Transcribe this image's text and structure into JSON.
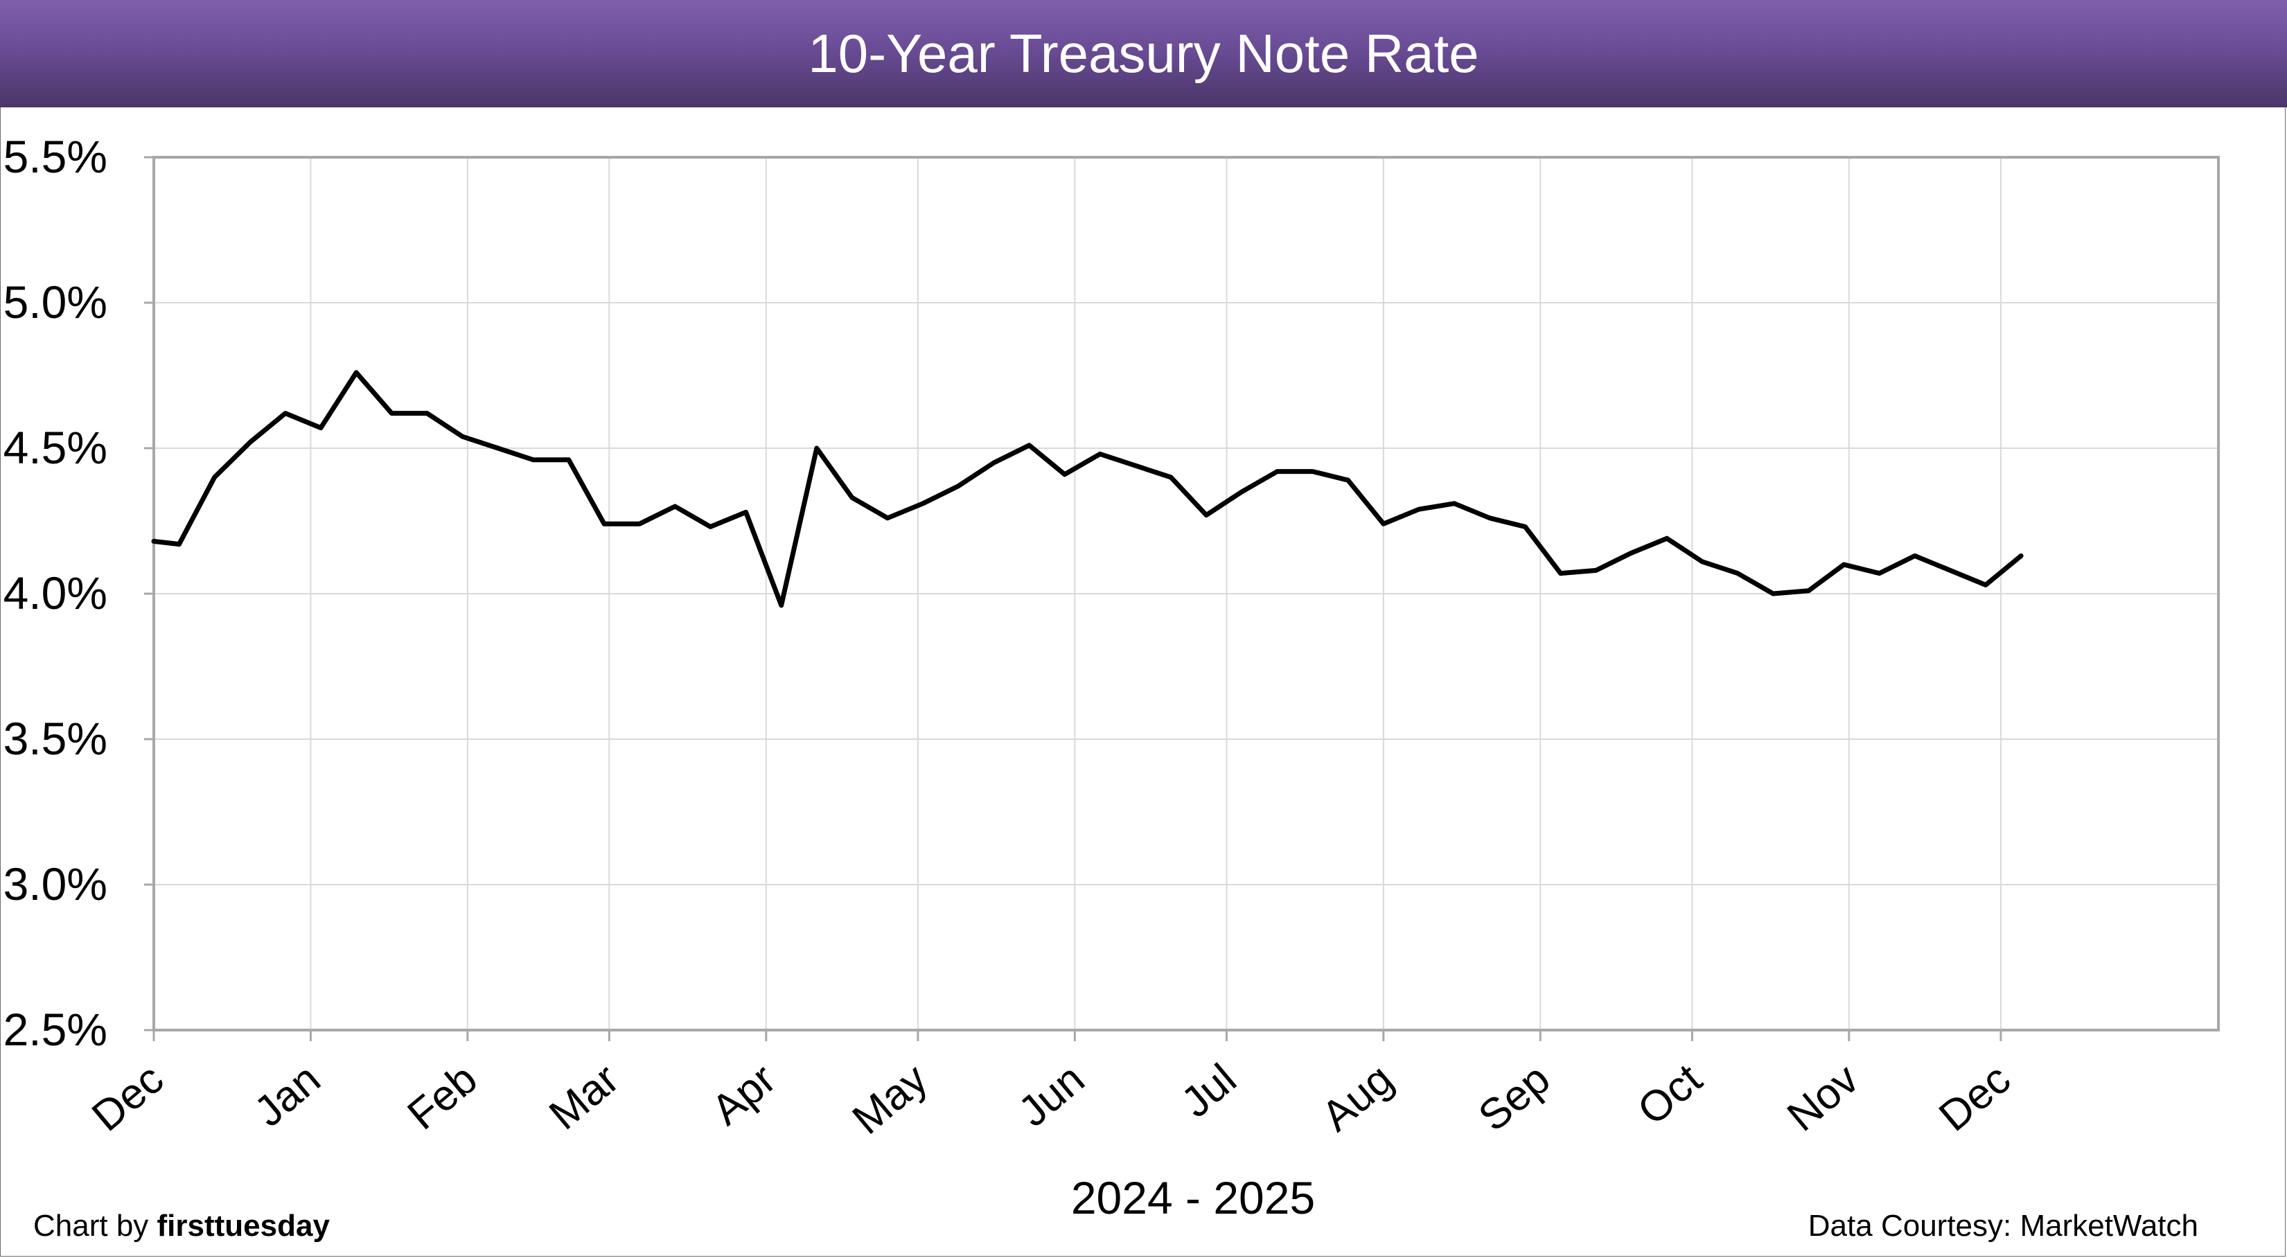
{
  "page": {
    "credit_prefix": "Chart by",
    "credit_brand": "firsttuesday",
    "source": "Data Courtesy: MarketWatch"
  },
  "chart_data": {
    "type": "line",
    "title": "10-Year Treasury Note Rate",
    "xlabel": "2024 - 2025",
    "ylabel": "",
    "ylim": [
      2.5,
      5.5
    ],
    "yticks": [
      2.5,
      3.0,
      3.5,
      4.0,
      4.5,
      5.0,
      5.5
    ],
    "ytick_labels": [
      "2.5%",
      "3.0%",
      "3.5%",
      "4.0%",
      "4.5%",
      "5.0%",
      "5.5%"
    ],
    "x_month_labels": [
      "Dec",
      "Jan",
      "Feb",
      "Mar",
      "Apr",
      "May",
      "Jun",
      "Jul",
      "Aug",
      "Sep",
      "Oct",
      "Nov",
      "Dec"
    ],
    "x_month_dates": [
      "2024-12-01",
      "2025-01-01",
      "2025-02-01",
      "2025-03-01",
      "2025-04-01",
      "2025-05-01",
      "2025-06-01",
      "2025-07-01",
      "2025-08-01",
      "2025-09-01",
      "2025-10-01",
      "2025-11-01",
      "2025-12-01"
    ],
    "xlim": [
      "2024-12-01",
      "2026-01-13"
    ],
    "grid": true,
    "line_color": "#000000",
    "header_color": "#6a4c96",
    "series": [
      {
        "x": [
          "2024-12-01",
          "2024-12-06",
          "2024-12-13",
          "2024-12-20",
          "2024-12-27",
          "2025-01-03",
          "2025-01-10",
          "2025-01-17",
          "2025-01-24",
          "2025-01-31",
          "2025-02-07",
          "2025-02-14",
          "2025-02-21",
          "2025-02-28",
          "2025-03-07",
          "2025-03-14",
          "2025-03-21",
          "2025-03-28",
          "2025-04-04",
          "2025-04-11",
          "2025-04-18",
          "2025-04-25",
          "2025-05-02",
          "2025-05-09",
          "2025-05-16",
          "2025-05-23",
          "2025-05-30",
          "2025-06-06",
          "2025-06-13",
          "2025-06-20",
          "2025-06-27",
          "2025-07-04",
          "2025-07-11",
          "2025-07-18",
          "2025-07-25",
          "2025-08-01",
          "2025-08-08",
          "2025-08-15",
          "2025-08-22",
          "2025-08-29",
          "2025-09-05",
          "2025-09-12",
          "2025-09-19",
          "2025-09-26",
          "2025-10-03",
          "2025-10-10",
          "2025-10-17",
          "2025-10-24",
          "2025-10-31",
          "2025-11-07",
          "2025-11-14",
          "2025-11-21",
          "2025-11-28",
          "2025-12-05"
        ],
        "values": [
          4.18,
          4.17,
          4.4,
          4.52,
          4.62,
          4.57,
          4.76,
          4.62,
          4.62,
          4.54,
          4.5,
          4.46,
          4.46,
          4.24,
          4.24,
          4.3,
          4.23,
          4.28,
          3.96,
          4.5,
          4.33,
          4.26,
          4.31,
          4.37,
          4.45,
          4.51,
          4.41,
          4.48,
          4.44,
          4.4,
          4.27,
          4.35,
          4.42,
          4.42,
          4.39,
          4.24,
          4.29,
          4.31,
          4.26,
          4.23,
          4.07,
          4.08,
          4.14,
          4.19,
          4.11,
          4.07,
          4.0,
          4.01,
          4.1,
          4.07,
          4.13,
          4.08,
          4.03,
          4.13
        ]
      }
    ]
  }
}
